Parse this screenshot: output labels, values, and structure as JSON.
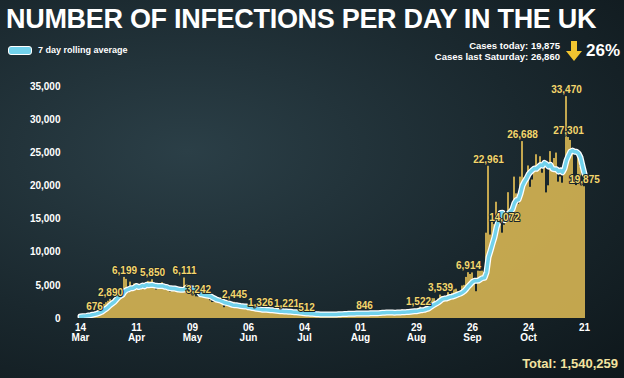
{
  "chart_data": {
    "type": "bar",
    "title": "NUMBER OF INFECTIONS PER DAY IN THE UK",
    "annotations": [
      "Cases today: 19,875",
      "Cases last Saturday: 26,860",
      "26%",
      "Total: 1,540,259"
    ],
    "categories": [
      "14\nMar",
      null,
      null,
      null,
      null,
      null,
      null,
      null,
      null,
      null,
      null,
      null,
      null,
      null,
      null,
      null,
      null,
      null,
      null,
      null,
      null,
      null,
      null,
      null,
      null,
      null,
      null,
      null,
      "11\nApr",
      null,
      null,
      null,
      null,
      null,
      null,
      null,
      null,
      null,
      null,
      null,
      null,
      null,
      null,
      null,
      null,
      null,
      null,
      null,
      null,
      null,
      null,
      null,
      null,
      null,
      null,
      null,
      "09\nMay",
      null,
      null,
      null,
      null,
      null,
      null,
      null,
      null,
      null,
      null,
      null,
      null,
      null,
      null,
      null,
      null,
      null,
      null,
      null,
      null,
      null,
      null,
      null,
      null,
      null,
      null,
      null,
      "06\nJun",
      null,
      null,
      null,
      null,
      null,
      null,
      null,
      null,
      null,
      null,
      null,
      null,
      null,
      null,
      null,
      null,
      null,
      null,
      null,
      null,
      null,
      null,
      null,
      null,
      null,
      null,
      null,
      "04\nJul",
      null,
      null,
      null,
      null,
      null,
      null,
      null,
      null,
      null,
      null,
      null,
      null,
      null,
      null,
      null,
      null,
      null,
      null,
      null,
      null,
      null,
      null,
      null,
      null,
      null,
      null,
      null,
      "01\nAug",
      null,
      null,
      null,
      null,
      null,
      null,
      null,
      null,
      null,
      null,
      null,
      null,
      null,
      null,
      null,
      null,
      null,
      null,
      null,
      null,
      null,
      null,
      null,
      null,
      null,
      null,
      null,
      "29\nAug",
      null,
      null,
      null,
      null,
      null,
      null,
      null,
      null,
      null,
      null,
      null,
      null,
      null,
      null,
      null,
      null,
      null,
      null,
      null,
      null,
      null,
      null,
      null,
      null,
      null,
      null,
      null,
      "26\nSep",
      null,
      null,
      null,
      null,
      null,
      null,
      null,
      null,
      null,
      null,
      null,
      null,
      null,
      null,
      null,
      null,
      null,
      null,
      null,
      null,
      null,
      null,
      null,
      null,
      null,
      null,
      null,
      "24\nOct",
      null,
      null,
      null,
      null,
      null,
      null,
      null,
      null,
      null,
      null,
      null,
      null,
      null,
      null,
      null,
      null,
      null,
      null,
      null,
      null,
      null,
      null,
      null,
      null,
      null,
      null,
      null,
      "21"
    ],
    "values": [
      340,
      410,
      400,
      420,
      560,
      620,
      650,
      676,
      1000,
      1200,
      1450,
      1450,
      2120,
      2380,
      2600,
      2890,
      2450,
      3010,
      4320,
      4240,
      4450,
      3735,
      6199,
      5900,
      3800,
      5490,
      4340,
      5200,
      5280,
      4660,
      4340,
      5250,
      4600,
      4620,
      5600,
      5530,
      5850,
      4670,
      4300,
      4450,
      4580,
      5390,
      4900,
      4460,
      4310,
      3990,
      4076,
      4810,
      4810,
      4340,
      4340,
      3985,
      6111,
      4650,
      4650,
      3900,
      3890,
      3880,
      3270,
      3242,
      3400,
      3450,
      3560,
      3450,
      3530,
      2680,
      2410,
      2470,
      2620,
      2610,
      2960,
      2400,
      1630,
      2000,
      2010,
      1880,
      1800,
      2445,
      1940,
      1570,
      1650,
      1870,
      1800,
      1650,
      1560,
      1330,
      1200,
      1390,
      1250,
      1540,
      1326,
      1220,
      1280,
      1090,
      1115,
      1200,
      1290,
      1010,
      960,
      1000,
      960,
      1100,
      900,
      1221,
      950,
      880,
      770,
      830,
      870,
      750,
      640,
      820,
      620,
      512,
      530,
      580,
      640,
      590,
      610,
      560,
      580,
      510,
      540,
      640,
      690,
      560,
      600,
      650,
      610,
      580,
      690,
      700,
      760,
      720,
      680,
      580,
      750,
      760,
      820,
      880,
      770,
      750,
      846,
      740,
      670,
      950,
      870,
      890,
      760,
      830,
      1060,
      890,
      1010,
      1020,
      990,
      1040,
      710,
      810,
      1180,
      1180,
      1030,
      1290,
      1040,
      1060,
      1180,
      1080,
      1020,
      1280,
      1110,
      1522,
      1710,
      1300,
      1420,
      1940,
      1790,
      2660,
      3000,
      2990,
      2460,
      2920,
      3539,
      3330,
      3100,
      3100,
      3900,
      3400,
      3800,
      4330,
      4420,
      4050,
      3900,
      4900,
      5000,
      6200,
      6914,
      6640,
      6870,
      5690,
      4040,
      7140,
      7110,
      7140,
      6970,
      12870,
      22961,
      12590,
      14540,
      14162,
      17540,
      13860,
      15166,
      12872,
      14072,
      15650,
      18980,
      16170,
      16980,
      21330,
      18804,
      17234,
      21331,
      26688,
      21242,
      20530,
      23012,
      19790,
      20890,
      22885,
      24701,
      23065,
      24405,
      21915,
      23254,
      18950,
      20018,
      25177,
      22826,
      24141,
      24957,
      20572,
      21350,
      20412,
      22950,
      33470,
      27301,
      26860,
      24962,
      21363,
      20051,
      25329,
      22915,
      20252,
      19875
    ],
    "value_labels": [
      null,
      null,
      null,
      null,
      null,
      null,
      null,
      "676",
      null,
      null,
      null,
      null,
      null,
      null,
      null,
      "2,890",
      null,
      null,
      null,
      null,
      null,
      null,
      "6,199",
      null,
      null,
      null,
      null,
      null,
      null,
      null,
      null,
      null,
      null,
      null,
      null,
      null,
      "5,850",
      null,
      null,
      null,
      null,
      null,
      null,
      null,
      null,
      null,
      null,
      null,
      null,
      null,
      null,
      null,
      "6,111",
      null,
      null,
      null,
      null,
      null,
      null,
      "3,242",
      null,
      null,
      null,
      null,
      null,
      null,
      null,
      null,
      null,
      null,
      null,
      null,
      null,
      null,
      null,
      null,
      null,
      "2,445",
      null,
      null,
      null,
      null,
      null,
      null,
      null,
      null,
      null,
      null,
      null,
      null,
      "1,326",
      null,
      null,
      null,
      null,
      null,
      null,
      null,
      null,
      null,
      null,
      null,
      null,
      "1,221",
      null,
      null,
      null,
      null,
      null,
      null,
      null,
      null,
      null,
      "512",
      null,
      null,
      null,
      null,
      null,
      null,
      null,
      null,
      null,
      null,
      null,
      null,
      null,
      null,
      null,
      null,
      null,
      null,
      null,
      null,
      null,
      null,
      null,
      null,
      null,
      null,
      null,
      null,
      "846",
      null,
      null,
      null,
      null,
      null,
      null,
      null,
      null,
      null,
      null,
      null,
      null,
      null,
      null,
      null,
      null,
      null,
      null,
      null,
      null,
      null,
      null,
      null,
      null,
      null,
      null,
      "1,522",
      null,
      null,
      null,
      null,
      null,
      null,
      null,
      null,
      null,
      null,
      "3,539",
      null,
      null,
      null,
      null,
      null,
      null,
      null,
      null,
      null,
      null,
      null,
      null,
      null,
      "6,914",
      null,
      null,
      null,
      null,
      null,
      null,
      null,
      null,
      null,
      "22,961",
      null,
      null,
      null,
      null,
      null,
      null,
      null,
      "14,072",
      null,
      null,
      null,
      null,
      null,
      null,
      null,
      null,
      "26,688",
      null,
      null,
      null,
      null,
      null,
      null,
      null,
      null,
      null,
      null,
      null,
      null,
      null,
      null,
      null,
      null,
      null,
      null,
      null,
      null,
      null,
      "33,470",
      "27,301",
      null,
      null,
      null,
      null,
      null,
      null,
      null,
      "19,875"
    ],
    "color": "#d2b252",
    "data_labels": true,
    "series": [
      {
        "name": "7 day rolling average",
        "type": "line",
        "color": "#72d2ec",
        "values": [
          300,
          330,
          360,
          400,
          450,
          500,
          560,
          620,
          700,
          800,
          920,
          1060,
          1290,
          1510,
          1780,
          2070,
          2300,
          2520,
          2870,
          3200,
          3420,
          3580,
          4050,
          4290,
          4400,
          4550,
          4560,
          4690,
          4900,
          4750,
          4810,
          4980,
          4850,
          5100,
          5010,
          5050,
          5080,
          5000,
          4930,
          4910,
          4920,
          4910,
          4800,
          4770,
          4620,
          4570,
          4520,
          4530,
          4450,
          4370,
          4350,
          4320,
          4360,
          4650,
          4710,
          4590,
          4530,
          4460,
          4290,
          4080,
          3650,
          3620,
          3540,
          3480,
          3430,
          3350,
          3160,
          3020,
          2850,
          2770,
          2700,
          2560,
          2410,
          2350,
          2270,
          2170,
          2050,
          2000,
          1990,
          1940,
          1880,
          1850,
          1820,
          1800,
          1680,
          1650,
          1580,
          1540,
          1460,
          1440,
          1380,
          1330,
          1340,
          1300,
          1270,
          1240,
          1240,
          1200,
          1160,
          1130,
          1080,
          1080,
          1040,
          1040,
          1020,
          1010,
          980,
          960,
          930,
          890,
          850,
          840,
          800,
          770,
          760,
          730,
          710,
          680,
          640,
          630,
          620,
          600,
          600,
          600,
          610,
          600,
          610,
          620,
          620,
          640,
          650,
          660,
          680,
          690,
          700,
          700,
          710,
          720,
          740,
          760,
          760,
          760,
          770,
          770,
          760,
          790,
          790,
          800,
          800,
          810,
          830,
          850,
          860,
          890,
          910,
          920,
          900,
          880,
          890,
          910,
          920,
          960,
          960,
          970,
          990,
          1030,
          1070,
          1090,
          1090,
          1150,
          1230,
          1260,
          1300,
          1420,
          1490,
          1710,
          1920,
          2110,
          2270,
          2450,
          2700,
          2920,
          3000,
          3020,
          3150,
          3260,
          3300,
          3400,
          3530,
          3660,
          3770,
          3930,
          4160,
          4500,
          4870,
          5190,
          5520,
          5690,
          5710,
          5720,
          5930,
          6090,
          6130,
          6940,
          9230,
          10220,
          11280,
          12290,
          13720,
          14700,
          15920,
          15960,
          14840,
          15140,
          15800,
          16090,
          16480,
          17420,
          17880,
          17930,
          18830,
          20040,
          20650,
          21110,
          21730,
          22100,
          22400,
          22630,
          22580,
          22880,
          23150,
          23060,
          23480,
          23270,
          22930,
          23170,
          22580,
          22520,
          22520,
          22170,
          22340,
          22060,
          22630,
          23850,
          24560,
          25180,
          25330,
          25160,
          25150,
          24900,
          24300,
          23000,
          21800
        ]
      }
    ],
    "ylim": [
      0,
      35000
    ],
    "yticks": [
      0,
      {
        "value": 5000,
        "label": "5,000"
      },
      {
        "value": 10000,
        "label": "10,000"
      },
      {
        "value": 15000,
        "label": "15,000"
      },
      {
        "value": 20000,
        "label": "20,000"
      },
      {
        "value": 25000,
        "label": "25,000"
      },
      {
        "value": 30000,
        "label": "30,000"
      },
      {
        "value": 35000,
        "label": "35,000"
      }
    ],
    "grid": false,
    "legend": "top-left"
  }
}
